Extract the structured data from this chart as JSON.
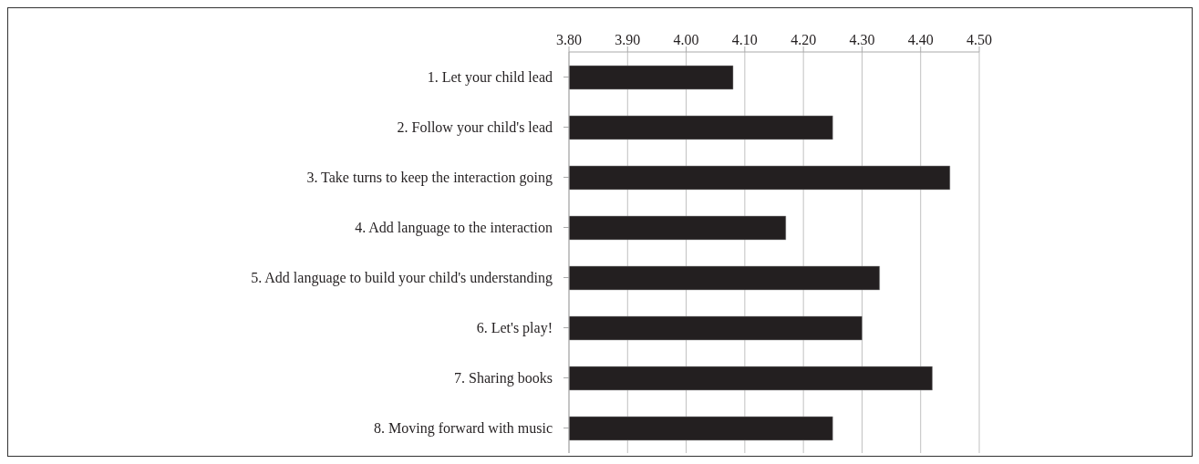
{
  "chart_data": {
    "type": "bar",
    "orientation": "horizontal",
    "categories": [
      "1. Let your child lead",
      "2. Follow your child's lead",
      "3. Take turns to keep the interaction going",
      "4. Add language to the interaction",
      "5. Add language to build your child's understanding",
      "6. Let's play!",
      "7. Sharing books",
      "8. Moving forward with music"
    ],
    "values": [
      4.08,
      4.25,
      4.45,
      4.17,
      4.33,
      4.3,
      4.42,
      4.25
    ],
    "color": "#231f20",
    "xlim": [
      3.8,
      4.5
    ],
    "xticks": [
      {
        "value": 3.8,
        "label": "3.80"
      },
      {
        "value": 3.9,
        "label": "3.90"
      },
      {
        "value": 4.0,
        "label": "4.00"
      },
      {
        "value": 4.1,
        "label": "4.10"
      },
      {
        "value": 4.2,
        "label": "4.20"
      },
      {
        "value": 4.3,
        "label": "4.30"
      },
      {
        "value": 4.4,
        "label": "4.40"
      },
      {
        "value": 4.5,
        "label": "4.50"
      }
    ],
    "grid": "x"
  }
}
